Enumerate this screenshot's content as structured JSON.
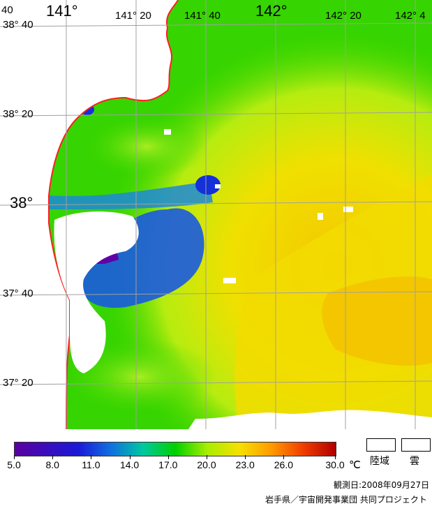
{
  "map": {
    "lat_labels": [
      "38° 40",
      "38° 20",
      "38°",
      "37° 40",
      "37° 20"
    ],
    "lon_labels": [
      "141°",
      "141° 20",
      "141° 40",
      "142°",
      "142° 20",
      "142° 4"
    ],
    "corner_label": "40"
  },
  "colorbar": {
    "ticks": [
      "5.0",
      "8.0",
      "11.0",
      "14.0",
      "17.0",
      "20.0",
      "23.0",
      "26.0",
      "30.0"
    ],
    "unit": "℃",
    "min": 5.0,
    "max": 30.0
  },
  "legend": {
    "land": "陸域",
    "cloud": "雲"
  },
  "footer": {
    "date": "観測日:2008年09月27日",
    "credit": "岩手県／宇宙開発事業団 共同プロジェクト"
  },
  "colors": {
    "coast": "#ff2020",
    "grid": "#a0a0a0",
    "warm": "#f6e000",
    "cold": "#1a1ad8",
    "mid": "#00d000"
  }
}
